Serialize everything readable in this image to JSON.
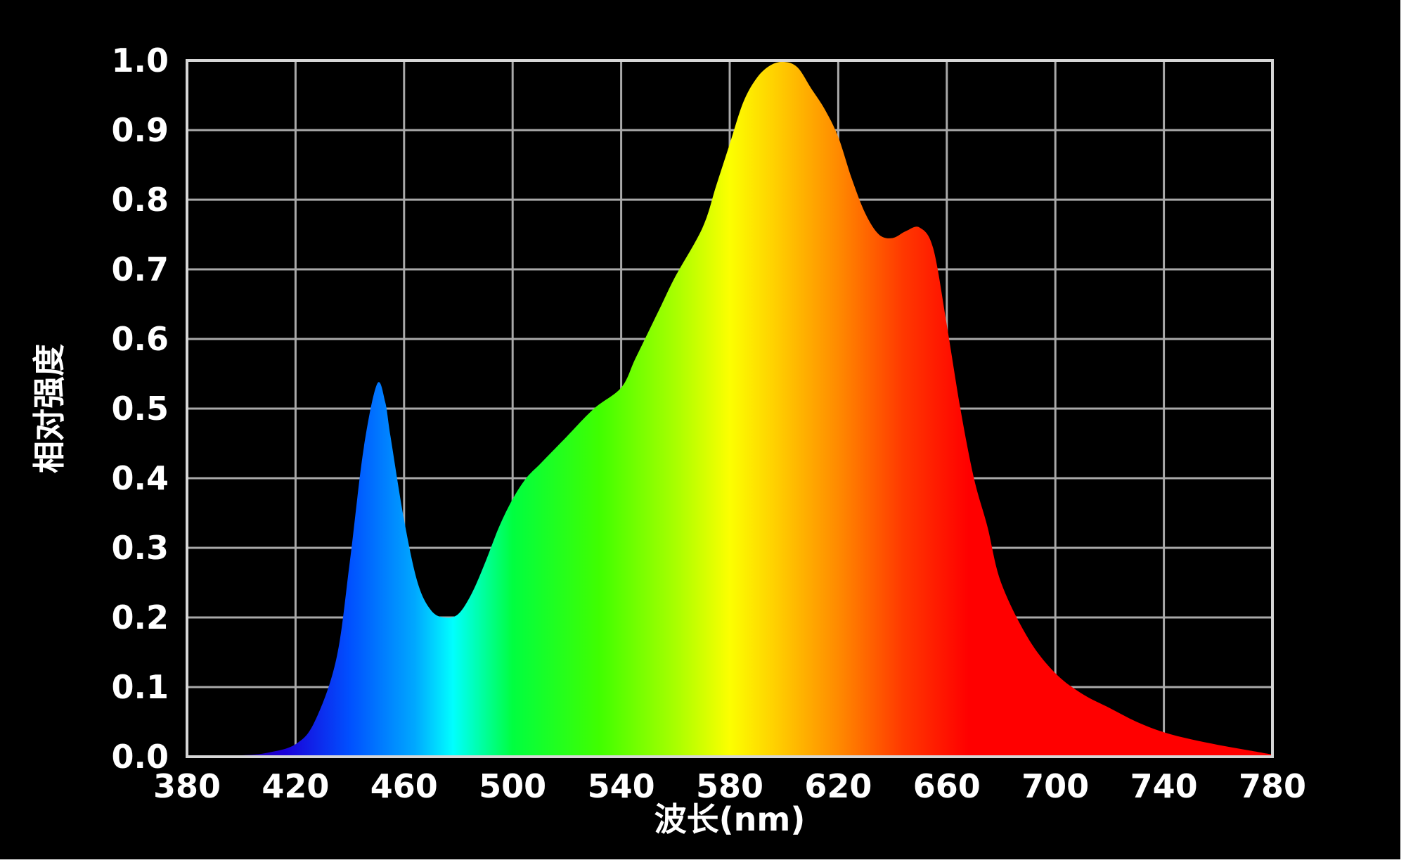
{
  "chart_data": {
    "type": "area",
    "title": "",
    "xlabel": "波长(nm)",
    "ylabel": "相对强度",
    "xlim": [
      380,
      780
    ],
    "ylim": [
      0.0,
      1.0
    ],
    "x_ticks": [
      380,
      420,
      460,
      500,
      540,
      580,
      620,
      660,
      700,
      740,
      780
    ],
    "x_tick_labels": [
      "380",
      "420",
      "460",
      "500",
      "540",
      "580",
      "620",
      "660",
      "700",
      "740",
      "780"
    ],
    "y_ticks": [
      0.0,
      0.1,
      0.2,
      0.3,
      0.4,
      0.5,
      0.6,
      0.7,
      0.8,
      0.9,
      1.0
    ],
    "y_tick_labels": [
      "0.0",
      "0.1",
      "0.2",
      "0.3",
      "0.4",
      "0.5",
      "0.6",
      "0.7",
      "0.8",
      "0.9",
      "1.0"
    ],
    "grid": true,
    "legend": "none",
    "fill": "visible spectrum gradient",
    "series": [
      {
        "x": [
          380,
          400,
          410,
          420,
          427,
          435,
          440,
          445,
          450,
          453,
          455,
          460,
          465,
          470,
          475,
          480,
          485,
          490,
          495,
          500,
          505,
          510,
          515,
          520,
          530,
          540,
          545,
          550,
          555,
          560,
          570,
          575,
          580,
          585,
          590,
          595,
          600,
          605,
          610,
          615,
          620,
          625,
          630,
          635,
          640,
          645,
          650,
          655,
          660,
          665,
          670,
          675,
          680,
          690,
          700,
          710,
          720,
          730,
          740,
          750,
          760,
          770,
          780
        ],
        "y": [
          0.0,
          0.002,
          0.006,
          0.018,
          0.05,
          0.14,
          0.28,
          0.44,
          0.535,
          0.51,
          0.46,
          0.34,
          0.25,
          0.21,
          0.2,
          0.205,
          0.235,
          0.28,
          0.33,
          0.37,
          0.4,
          0.42,
          0.44,
          0.46,
          0.5,
          0.53,
          0.57,
          0.61,
          0.65,
          0.69,
          0.76,
          0.82,
          0.88,
          0.94,
          0.975,
          0.993,
          0.998,
          0.99,
          0.96,
          0.93,
          0.89,
          0.83,
          0.78,
          0.75,
          0.745,
          0.755,
          0.76,
          0.73,
          0.62,
          0.5,
          0.4,
          0.33,
          0.25,
          0.17,
          0.12,
          0.09,
          0.07,
          0.05,
          0.035,
          0.025,
          0.017,
          0.01,
          0.003
        ]
      }
    ]
  }
}
